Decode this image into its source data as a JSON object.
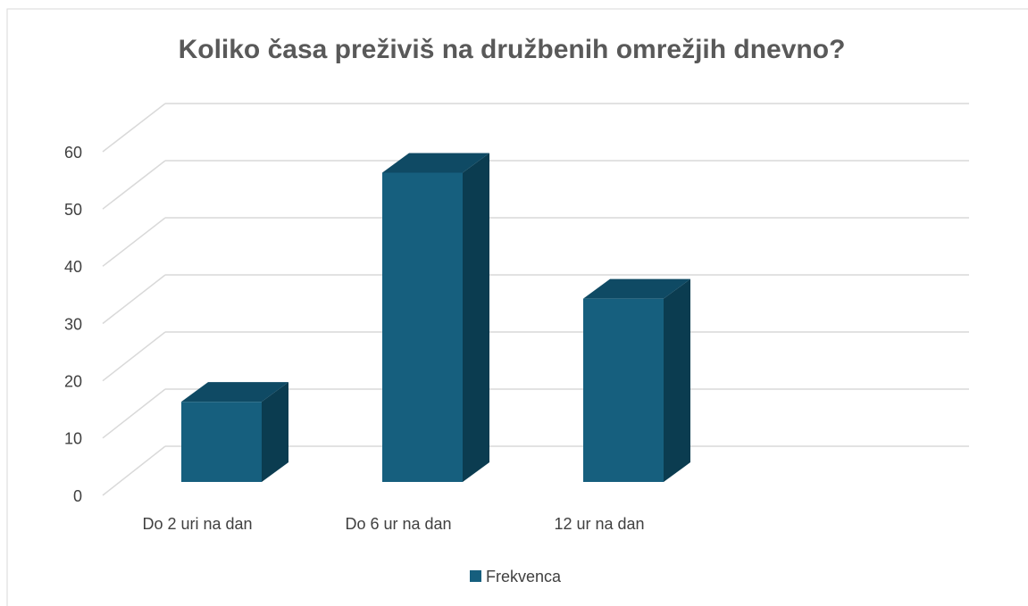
{
  "chart_data": {
    "type": "bar3d",
    "title": "Koliko časa preživiš na družbenih omrežjih dnevno?",
    "categories": [
      "Do 2 uri  na dan",
      "Do 6 ur na dan",
      "12 ur na dan"
    ],
    "series": [
      {
        "name": "Frekvenca",
        "color": "#165f7e",
        "values": [
          14,
          54,
          32
        ]
      }
    ],
    "ylim": [
      0,
      60
    ],
    "yticks": [
      0,
      10,
      20,
      30,
      40,
      50,
      60
    ],
    "grid": true,
    "legend": "bottom"
  }
}
